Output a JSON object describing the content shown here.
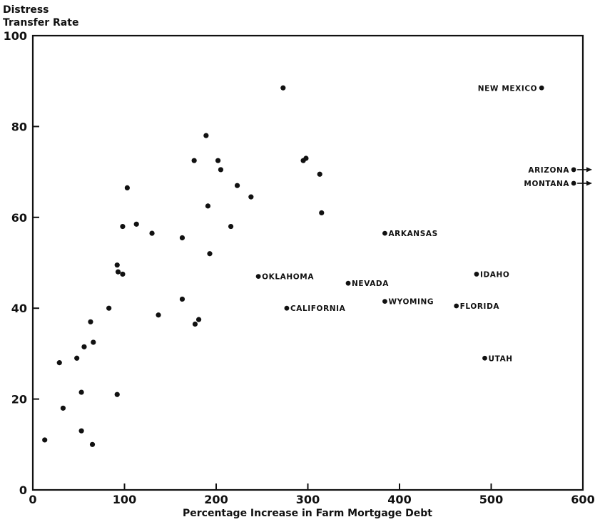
{
  "chart_data": {
    "type": "scatter",
    "title": "",
    "xlabel": "Percentage Increase in Farm Mortgage Debt",
    "ylabel_lines": [
      "Distress",
      "Transfer Rate"
    ],
    "xlim": [
      0,
      600
    ],
    "ylim": [
      0,
      100
    ],
    "x_ticks": [
      "0",
      "100",
      "200",
      "300",
      "400",
      "500",
      "600"
    ],
    "y_ticks": [
      "0",
      "20",
      "40",
      "60",
      "80",
      "100"
    ],
    "grid": false,
    "labeled_points": [
      {
        "label": "NEW MEXICO",
        "x": 555,
        "y": 88.5,
        "side": "left"
      },
      {
        "label": "ARIZONA",
        "x": 590,
        "y": 70.5,
        "side": "left",
        "arrow": true
      },
      {
        "label": "MONTANA",
        "x": 590,
        "y": 67.5,
        "side": "left",
        "arrow": true
      },
      {
        "label": "ARKANSAS",
        "x": 384,
        "y": 56.5,
        "side": "right"
      },
      {
        "label": "OKLAHOMA",
        "x": 246,
        "y": 47,
        "side": "right"
      },
      {
        "label": "NEVADA",
        "x": 344,
        "y": 45.5,
        "side": "right"
      },
      {
        "label": "IDAHO",
        "x": 484,
        "y": 47.5,
        "side": "right"
      },
      {
        "label": "CALIFORNIA",
        "x": 277,
        "y": 40,
        "side": "right"
      },
      {
        "label": "WYOMING",
        "x": 384,
        "y": 41.5,
        "side": "right"
      },
      {
        "label": "FLORIDA",
        "x": 462,
        "y": 40.5,
        "side": "right"
      },
      {
        "label": "UTAH",
        "x": 493,
        "y": 29,
        "side": "right"
      }
    ],
    "points": [
      {
        "x": 13,
        "y": 11
      },
      {
        "x": 33,
        "y": 18
      },
      {
        "x": 29,
        "y": 28
      },
      {
        "x": 48,
        "y": 29
      },
      {
        "x": 53,
        "y": 13
      },
      {
        "x": 53,
        "y": 21.5
      },
      {
        "x": 56,
        "y": 31.5
      },
      {
        "x": 63,
        "y": 37
      },
      {
        "x": 65,
        "y": 10
      },
      {
        "x": 66,
        "y": 32.5
      },
      {
        "x": 83,
        "y": 40
      },
      {
        "x": 92,
        "y": 21
      },
      {
        "x": 92,
        "y": 49.5
      },
      {
        "x": 93,
        "y": 48
      },
      {
        "x": 98,
        "y": 47.5
      },
      {
        "x": 98,
        "y": 58
      },
      {
        "x": 103,
        "y": 66.5
      },
      {
        "x": 113,
        "y": 58.5
      },
      {
        "x": 130,
        "y": 56.5
      },
      {
        "x": 137,
        "y": 38.5
      },
      {
        "x": 163,
        "y": 42
      },
      {
        "x": 163,
        "y": 55.5
      },
      {
        "x": 176,
        "y": 72.5
      },
      {
        "x": 177,
        "y": 36.5
      },
      {
        "x": 181,
        "y": 37.5
      },
      {
        "x": 189,
        "y": 78
      },
      {
        "x": 191,
        "y": 62.5
      },
      {
        "x": 193,
        "y": 52
      },
      {
        "x": 202,
        "y": 72.5
      },
      {
        "x": 205,
        "y": 70.5
      },
      {
        "x": 216,
        "y": 58
      },
      {
        "x": 223,
        "y": 67
      },
      {
        "x": 238,
        "y": 64.5
      },
      {
        "x": 273,
        "y": 88.5
      },
      {
        "x": 295,
        "y": 72.5
      },
      {
        "x": 298,
        "y": 73
      },
      {
        "x": 313,
        "y": 69.5
      },
      {
        "x": 315,
        "y": 61
      }
    ]
  }
}
